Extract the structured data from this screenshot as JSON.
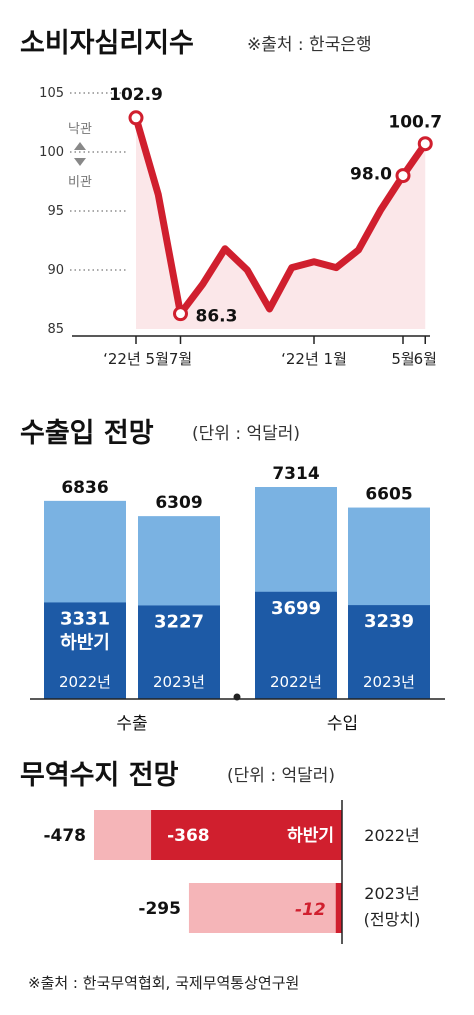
{
  "chart_data": [
    {
      "type": "line",
      "title": "소비자심리지수",
      "subtitle": "※출처 : 한국은행",
      "y_ticks": [
        "105",
        "100",
        "95",
        "90",
        "85"
      ],
      "ylim": [
        85,
        105
      ],
      "x_labels": [
        {
          "index": 0,
          "label": "‘22년 5월"
        },
        {
          "index": 2,
          "label": "7월"
        },
        {
          "index": 8,
          "label": "‘22년 1월"
        },
        {
          "index": 12,
          "label": "5월"
        },
        {
          "index": 13,
          "label": "6월"
        }
      ],
      "annotation_up": "낙관",
      "annotation_down": "비관",
      "values": [
        102.9,
        96.4,
        86.3,
        88.8,
        91.8,
        90.0,
        86.7,
        90.2,
        90.7,
        90.2,
        91.7,
        95.1,
        98.0,
        100.7
      ],
      "highlights": [
        {
          "index": 0,
          "label": "102.9"
        },
        {
          "index": 2,
          "label": "86.3"
        },
        {
          "index": 12,
          "label": "98.0"
        },
        {
          "index": 13,
          "label": "100.7"
        }
      ],
      "colors": {
        "line": "#d01f2e",
        "fill": "#fbe7e9"
      }
    },
    {
      "type": "bar",
      "title": "수출입 전망",
      "subtitle": "(단위 : 억달러)",
      "ylim": [
        0,
        7314
      ],
      "groups": [
        {
          "name": "수출",
          "bars": [
            {
              "year": "2022년",
              "total": 6836,
              "total_label": "6836",
              "half": 3331,
              "half_label": "3331",
              "half_name": "하반기"
            },
            {
              "year": "2023년",
              "total": 6309,
              "total_label": "6309",
              "half": 3227,
              "half_label": "3227"
            }
          ]
        },
        {
          "name": "수입",
          "bars": [
            {
              "year": "2022년",
              "total": 7314,
              "total_label": "7314",
              "half": 3699,
              "half_label": "3699"
            },
            {
              "year": "2023년",
              "total": 6605,
              "total_label": "6605",
              "half": 3239,
              "half_label": "3239"
            }
          ]
        }
      ],
      "colors": {
        "total": "#7ab2e2",
        "half": "#1d5aa6"
      }
    },
    {
      "type": "bar",
      "title": "무역수지 전망",
      "subtitle": "(단위 : 억달러)",
      "xlim": [
        -478,
        0
      ],
      "rows": [
        {
          "year": "2022년",
          "total": -478,
          "total_label": "-478",
          "half": -368,
          "half_label": "-368",
          "half_name": "하반기"
        },
        {
          "year": "2023년",
          "year_note": "(전망치)",
          "total": -295,
          "total_label": "-295",
          "half": -12,
          "half_label": "-12"
        }
      ],
      "colors": {
        "total": "#f5b5b8",
        "half": "#d01f2e"
      }
    }
  ],
  "footer": "※출처 : 한국무역협회, 국제무역통상연구원"
}
